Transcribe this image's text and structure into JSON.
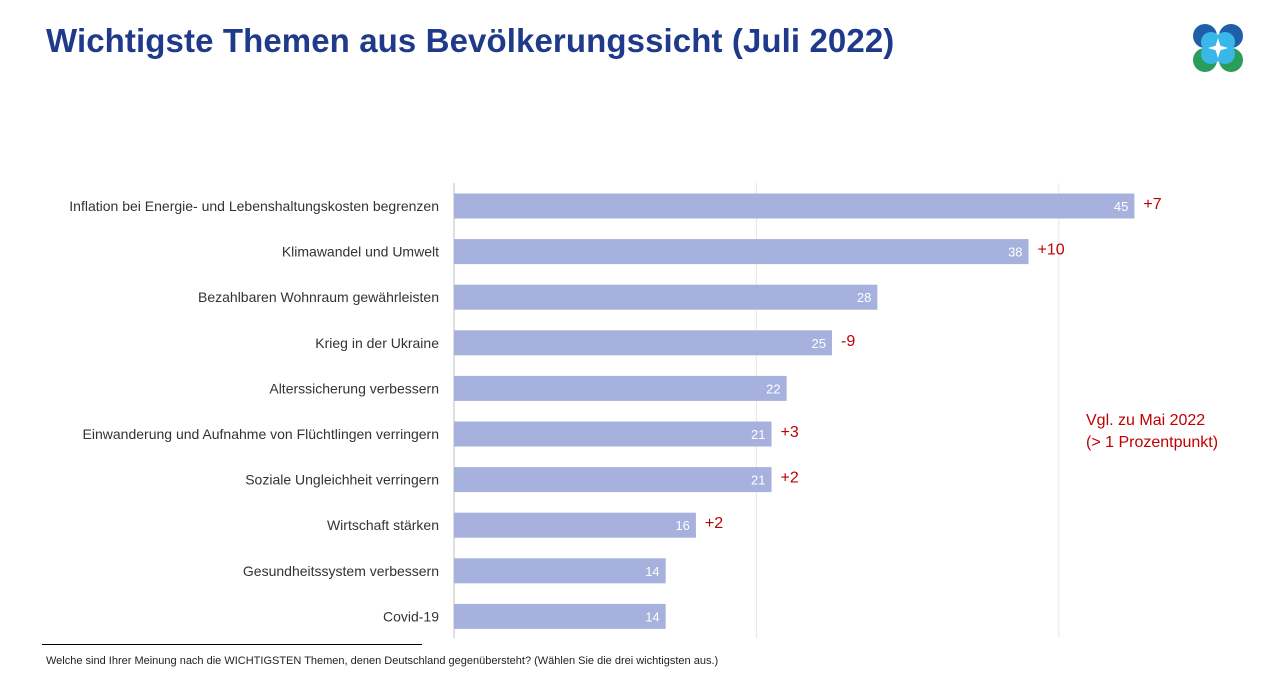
{
  "title": "Wichtigste Themen aus Bevölkerungssicht (Juli 2022)",
  "note": {
    "line1": "Vgl. zu Mai 2022",
    "line2": "(> 1 Prozentpunkt)"
  },
  "footnote": "Welche sind Ihrer Meinung nach die WICHTIGSTEN Themen, denen Deutschland gegenübersteht? (Wählen Sie die drei wichtigsten aus.)",
  "colors": {
    "title": "#1f3a8a",
    "bar": "#a6b1dd",
    "change": "#c00000",
    "grid": "#e6e6e6",
    "axis": "#bfbfbf"
  },
  "chart_data": {
    "type": "bar",
    "orientation": "horizontal",
    "categories": [
      "Inflation bei Energie- und Lebenshaltungskosten begrenzen",
      "Klimawandel und Umwelt",
      "Bezahlbaren Wohnraum gewährleisten",
      "Krieg in der Ukraine",
      "Alterssicherung verbessern",
      "Einwanderung und Aufnahme von Flüchtlingen verringern",
      "Soziale Ungleichheit verringern",
      "Wirtschaft stärken",
      "Gesundheitssystem verbessern",
      "Covid-19"
    ],
    "values": [
      45,
      38,
      28,
      25,
      22,
      21,
      21,
      16,
      14,
      14
    ],
    "changes": [
      "+7",
      "+10",
      "",
      "-9",
      "",
      "+3",
      "+2",
      "+2",
      "",
      ""
    ],
    "xlim": [
      0,
      50
    ],
    "grid": true,
    "legend": "none"
  }
}
